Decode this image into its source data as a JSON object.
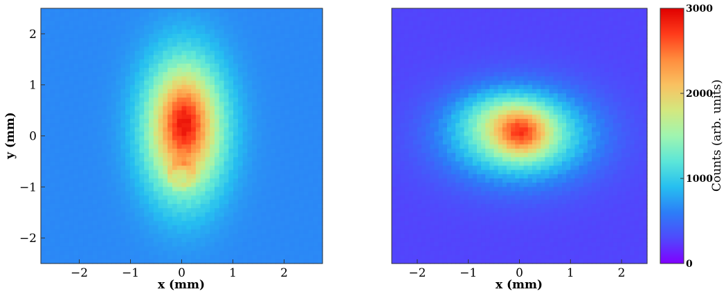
{
  "chart_data": [
    {
      "type": "heatmap",
      "title": "",
      "xlabel": "x (mm)",
      "ylabel": "y (mm)",
      "xlim": [
        -2.75,
        2.75
      ],
      "ylim": [
        -2.5,
        2.5
      ],
      "xticks": [
        {
          "value": -2,
          "label": "−2"
        },
        {
          "value": -1,
          "label": "−1"
        },
        {
          "value": 0,
          "label": "0"
        },
        {
          "value": 1,
          "label": "1"
        },
        {
          "value": 2,
          "label": "2"
        }
      ],
      "yticks": [
        {
          "value": 2,
          "label": "2"
        },
        {
          "value": 1,
          "label": "1"
        },
        {
          "value": 0,
          "label": "0"
        },
        {
          "value": -1,
          "label": "−1"
        },
        {
          "value": -2,
          "label": "−2"
        }
      ],
      "background_counts": 650,
      "features": [
        {
          "kind": "gaussian",
          "x": 0.05,
          "y": 0.15,
          "sx": 0.55,
          "sy": 0.95,
          "peak": 1750
        },
        {
          "kind": "gaussian",
          "x": 0.05,
          "y": 0.3,
          "sx": 0.28,
          "sy": 0.5,
          "peak": 500
        },
        {
          "kind": "ring",
          "x": 0.0,
          "y": -0.75,
          "r": 0.22,
          "peak": 250
        }
      ],
      "peak_counts": 2450
    },
    {
      "type": "heatmap",
      "title": "",
      "xlabel": "x (mm)",
      "ylabel": "",
      "xlim": [
        -2.5,
        2.5
      ],
      "ylim": [
        -2.5,
        2.5
      ],
      "xticks": [
        {
          "value": -2,
          "label": "−2"
        },
        {
          "value": -1,
          "label": "−1"
        },
        {
          "value": 0,
          "label": "0"
        },
        {
          "value": 1,
          "label": "1"
        },
        {
          "value": 2,
          "label": "2"
        }
      ],
      "background_counts": 280,
      "features": [
        {
          "kind": "gaussian",
          "x": 0.0,
          "y": 0.0,
          "sx": 0.95,
          "sy": 0.6,
          "peak": 1350
        },
        {
          "kind": "gaussian",
          "x": -0.3,
          "y": 0.4,
          "sx": 0.6,
          "sy": 0.35,
          "peak": 400
        },
        {
          "kind": "gaussian",
          "x": 0.05,
          "y": 0.05,
          "sx": 0.35,
          "sy": 0.3,
          "peak": 900
        }
      ],
      "peak_counts": 2650
    }
  ],
  "colorbar": {
    "label": "Counts (arb. units)",
    "range": [
      0,
      3000
    ],
    "ticks": [
      {
        "value": 0,
        "label": "0"
      },
      {
        "value": 1000,
        "label": "1000"
      },
      {
        "value": 2000,
        "label": "2000"
      },
      {
        "value": 3000,
        "label": "3000"
      }
    ],
    "colormap": [
      "#8000ff",
      "#4f4afc",
      "#2c7ef7",
      "#26bff0",
      "#5ce6d8",
      "#9ff5b0",
      "#d3e87f",
      "#f9c161",
      "#ff8c3d",
      "#ff3b1a",
      "#e00000"
    ]
  }
}
